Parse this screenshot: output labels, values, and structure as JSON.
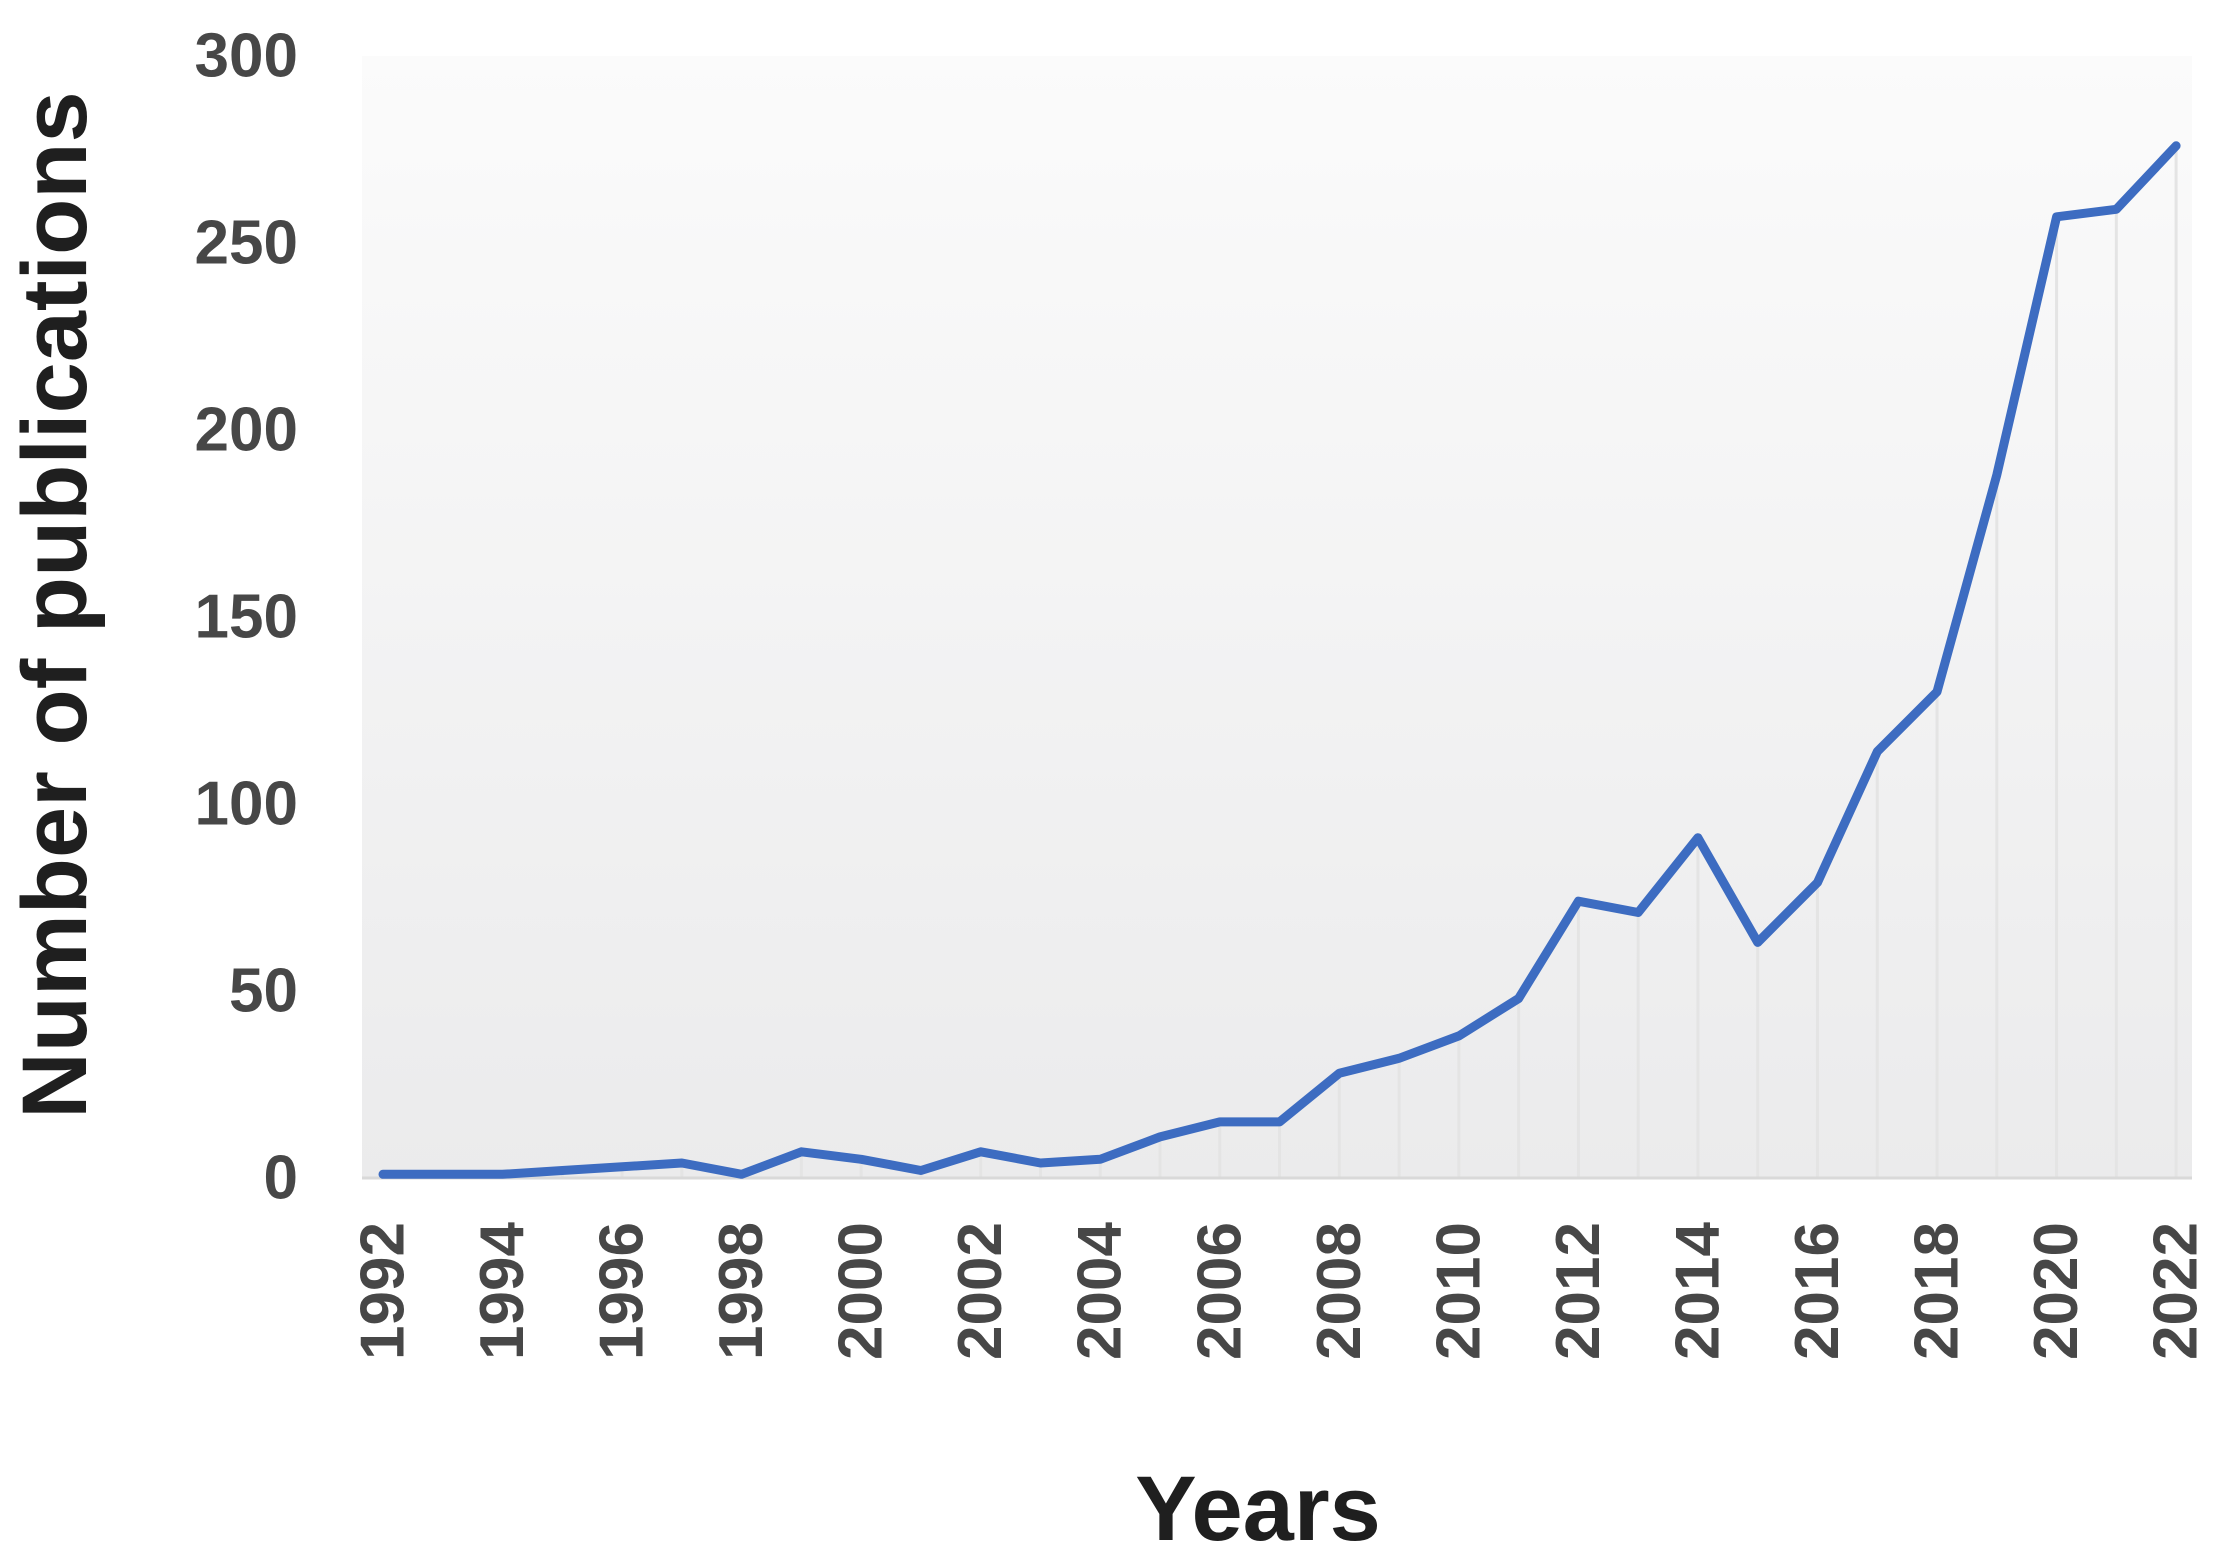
{
  "chart_data": {
    "type": "line",
    "title": "",
    "xlabel": "Years",
    "ylabel": "Number of publications",
    "categories": [
      1992,
      1993,
      1994,
      1995,
      1996,
      1997,
      1998,
      1999,
      2000,
      2001,
      2002,
      2003,
      2004,
      2005,
      2006,
      2007,
      2008,
      2009,
      2010,
      2011,
      2012,
      2013,
      2014,
      2015,
      2016,
      2017,
      2018,
      2019,
      2020,
      2021,
      2022
    ],
    "series": [
      {
        "name": "publications",
        "values": [
          1,
          1,
          1,
          2,
          3,
          4,
          1,
          7,
          5,
          2,
          7,
          4,
          5,
          11,
          15,
          15,
          28,
          32,
          38,
          48,
          74,
          71,
          91,
          63,
          79,
          114,
          130,
          188,
          257,
          259,
          276
        ]
      }
    ],
    "ylim": [
      0,
      300
    ],
    "yticks": [
      0,
      50,
      100,
      150,
      200,
      250,
      300
    ],
    "xtick_labels": [
      "1992",
      "1994",
      "1996",
      "1998",
      "2000",
      "2002",
      "2004",
      "2006",
      "2008",
      "2010",
      "2012",
      "2014",
      "2016",
      "2018",
      "2020",
      "2022"
    ],
    "grid": "vertical drop lines under each data point, no horizontal gridlines",
    "legend_position": "none",
    "colors": {
      "line": "#3d6cc1",
      "plot_bg_top": "#fbfbfb",
      "plot_bg_bottom": "#ebebec",
      "drop_line": "#e4e4e4",
      "axis_line": "#d9d9d9",
      "tick_label": "#474747",
      "axis_title": "#1f1f1f",
      "background": "#ffffff"
    }
  }
}
